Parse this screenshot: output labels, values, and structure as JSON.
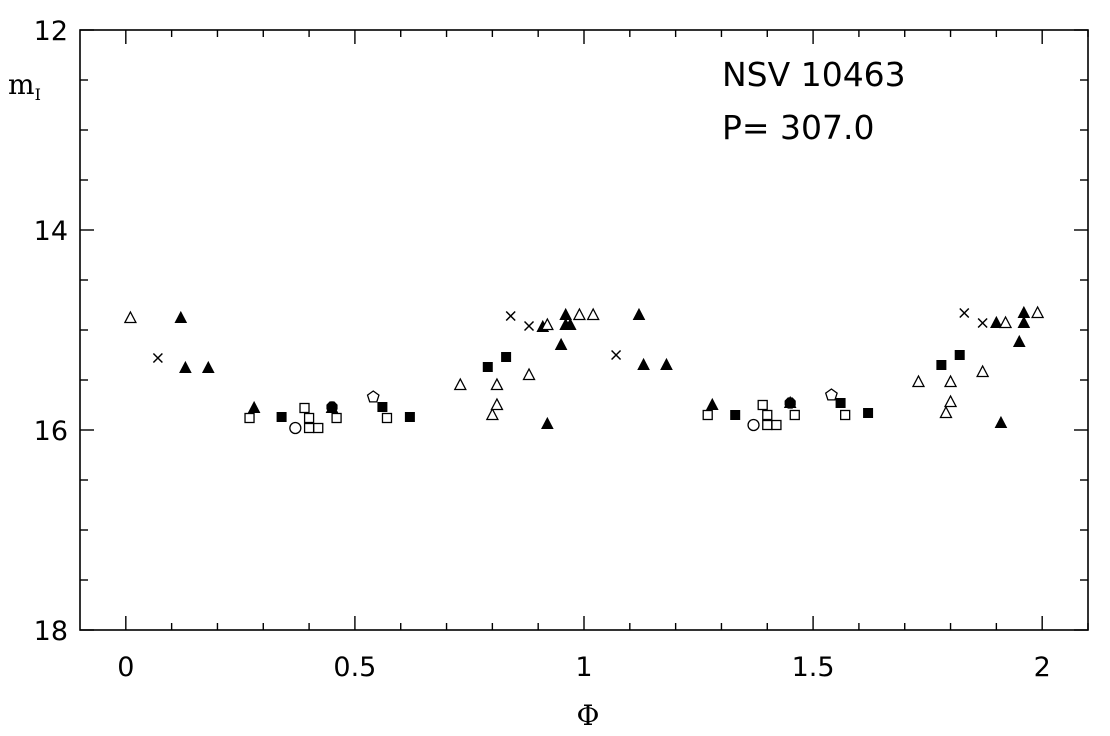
{
  "chart_data": {
    "type": "scatter",
    "xlabel": "Φ",
    "ylabel_main": "m",
    "ylabel_sub": "I",
    "xlim": [
      -0.1,
      2.1
    ],
    "ylim": [
      18,
      12
    ],
    "y_inverted": true,
    "x_ticks": [
      0,
      0.5,
      1,
      1.5,
      2
    ],
    "x_tick_labels": [
      "0",
      "0.5",
      "1",
      "1.5",
      "2"
    ],
    "x_minor_step": 0.1,
    "y_ticks": [
      12,
      14,
      16,
      18
    ],
    "y_tick_labels": [
      "12",
      "14",
      "16",
      "18"
    ],
    "y_minor_step": 0.5,
    "annotations": [
      "NSV 10463",
      "P= 307.0"
    ],
    "grid": false,
    "series": [
      {
        "marker": "filled-triangle",
        "points": [
          [
            0.12,
            14.88
          ],
          [
            0.13,
            15.38
          ],
          [
            0.18,
            15.38
          ],
          [
            0.28,
            15.78
          ],
          [
            0.45,
            15.78
          ],
          [
            0.91,
            14.97
          ],
          [
            0.92,
            15.94
          ],
          [
            0.95,
            15.15
          ],
          [
            0.96,
            14.95
          ],
          [
            0.96,
            14.85
          ],
          [
            0.97,
            14.95
          ],
          [
            1.12,
            14.85
          ],
          [
            1.13,
            15.35
          ],
          [
            1.18,
            15.35
          ],
          [
            1.28,
            15.75
          ],
          [
            1.45,
            15.73
          ],
          [
            1.9,
            14.93
          ],
          [
            1.91,
            15.93
          ],
          [
            1.95,
            15.12
          ],
          [
            1.96,
            14.93
          ],
          [
            1.96,
            14.83
          ]
        ]
      },
      {
        "marker": "open-triangle",
        "points": [
          [
            0.01,
            14.88
          ],
          [
            0.73,
            15.55
          ],
          [
            0.8,
            15.85
          ],
          [
            0.81,
            15.75
          ],
          [
            0.81,
            15.55
          ],
          [
            0.88,
            15.45
          ],
          [
            0.92,
            14.95
          ],
          [
            0.99,
            14.85
          ],
          [
            1.02,
            14.85
          ],
          [
            1.73,
            15.52
          ],
          [
            1.79,
            15.83
          ],
          [
            1.8,
            15.72
          ],
          [
            1.8,
            15.52
          ],
          [
            1.87,
            15.42
          ],
          [
            1.92,
            14.93
          ],
          [
            1.99,
            14.83
          ]
        ]
      },
      {
        "marker": "cross",
        "points": [
          [
            0.07,
            15.28
          ],
          [
            0.84,
            14.86
          ],
          [
            0.88,
            14.96
          ],
          [
            1.07,
            15.25
          ],
          [
            1.83,
            14.83
          ],
          [
            1.87,
            14.93
          ]
        ]
      },
      {
        "marker": "filled-square",
        "points": [
          [
            0.34,
            15.87
          ],
          [
            0.56,
            15.77
          ],
          [
            0.62,
            15.87
          ],
          [
            0.79,
            15.37
          ],
          [
            0.83,
            15.27
          ],
          [
            1.33,
            15.85
          ],
          [
            1.56,
            15.73
          ],
          [
            1.62,
            15.83
          ],
          [
            1.78,
            15.35
          ],
          [
            1.82,
            15.25
          ]
        ]
      },
      {
        "marker": "open-square",
        "points": [
          [
            0.27,
            15.88
          ],
          [
            0.39,
            15.78
          ],
          [
            0.4,
            15.88
          ],
          [
            0.4,
            15.98
          ],
          [
            0.42,
            15.98
          ],
          [
            0.46,
            15.88
          ],
          [
            0.57,
            15.88
          ],
          [
            1.27,
            15.85
          ],
          [
            1.39,
            15.75
          ],
          [
            1.4,
            15.85
          ],
          [
            1.4,
            15.95
          ],
          [
            1.42,
            15.95
          ],
          [
            1.46,
            15.85
          ],
          [
            1.57,
            15.85
          ]
        ]
      },
      {
        "marker": "open-circle",
        "points": [
          [
            0.37,
            15.98
          ],
          [
            1.37,
            15.95
          ]
        ]
      },
      {
        "marker": "open-pentagon",
        "points": [
          [
            0.54,
            15.67
          ],
          [
            1.54,
            15.65
          ]
        ]
      },
      {
        "marker": "filled-octagon",
        "points": [
          [
            0.45,
            15.77
          ],
          [
            1.45,
            15.73
          ]
        ]
      }
    ]
  }
}
